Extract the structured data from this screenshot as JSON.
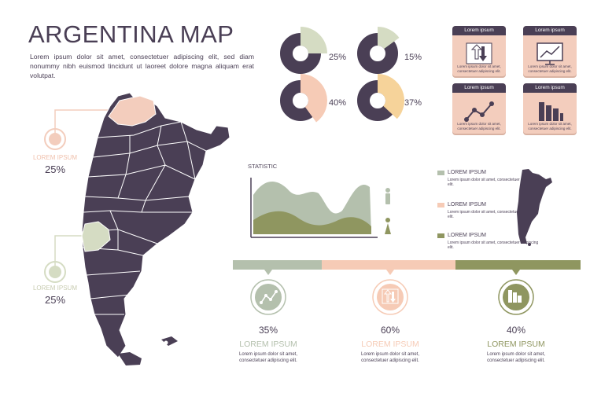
{
  "title": "ARGENTINA MAP",
  "intro": "Lorem ipsum dolor sit amet, consectetuer adipiscing elit, sed diam nonummy nibh euismod tincidunt ut laoreet dolore magna aliquam erat volutpat.",
  "callouts": [
    {
      "label": "LOREM IPSUM",
      "value": "25%"
    },
    {
      "label": "LOREM IPSUM",
      "value": "25%"
    }
  ],
  "donuts": [
    {
      "value": "25%",
      "fraction": 0.25,
      "color": "#d5dcc3"
    },
    {
      "value": "15%",
      "fraction": 0.15,
      "color": "#d5dcc3"
    },
    {
      "value": "40%",
      "fraction": 0.4,
      "color": "#f6cbb6"
    },
    {
      "value": "37%",
      "fraction": 0.37,
      "color": "#f6d39a"
    }
  ],
  "cards": [
    {
      "title": "Lorem ipsum",
      "icon": "up-down-arrows-icon",
      "text": "Lorem ipsum dolor sit amet, consectetuer adipiscing elit."
    },
    {
      "title": "Lorem ipsum",
      "icon": "monitor-chart-icon",
      "text": "Lorem ipsum dolor sit amet, consectetuer adipiscing elit."
    },
    {
      "title": "Lorem ipsum",
      "icon": "line-graph-icon",
      "text": "Lorem ipsum dolor sit amet, consectetuer adipiscing elit."
    },
    {
      "title": "Lorem ipsum",
      "icon": "bar-chart-icon",
      "text": "Lorem ipsum dolor sit amet, consectetuer adipiscing elit."
    }
  ],
  "statistic": {
    "title": "STATISTIC",
    "male_icon": "male-person-icon",
    "female_icon": "female-person-icon"
  },
  "legend": [
    {
      "title": "LOREM IPSUM",
      "text": "Lorem ipsum dolor sit amet, consectetuer adipiscing elit.",
      "color": "#b4c0ad"
    },
    {
      "title": "LOREM IPSUM",
      "text": "Lorem ipsum dolor sit amet, consectetuer adipiscing elit.",
      "color": "#f6cbb6"
    },
    {
      "title": "LOREM IPSUM",
      "text": "Lorem ipsum dolor sit amet, consectetuer adipiscing elit.",
      "color": "#8f9660"
    }
  ],
  "progress": [
    {
      "value": "35%",
      "label": "LOREM IPSUM",
      "text": "Lorem ipsum dolor sit amet, consectetuer adipiscing elit.",
      "color": "#b4c0ad",
      "icon": "line-graph-icon"
    },
    {
      "value": "60%",
      "label": "LOREM IPSUM",
      "text": "Lorem ipsum dolor sit amet, consectetuer adipiscing elit.",
      "color": "#f6cbb6",
      "icon": "up-down-arrows-icon"
    },
    {
      "value": "40%",
      "label": "LOREM IPSUM",
      "text": "Lorem ipsum dolor sit amet, consectetuer adipiscing elit.",
      "color": "#8f9660",
      "icon": "bar-chart-icon"
    }
  ],
  "colors": {
    "dark": "#4a3f55",
    "sage": "#b4c0ad",
    "peach": "#f6cbb6",
    "olive": "#8f9660",
    "yellow": "#f6d39a"
  }
}
